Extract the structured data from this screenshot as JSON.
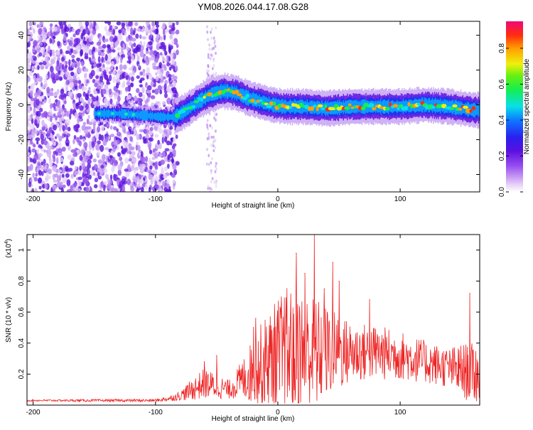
{
  "figure": {
    "title": "YM08.2026.044.17.08.G28"
  },
  "chart_data": [
    {
      "type": "heatmap",
      "title": "YM08.2026.044.17.08.G28",
      "xlabel": "Height of straight line (km)",
      "ylabel": "Frequency (Hz)",
      "xlim": [
        -205,
        165
      ],
      "ylim": [
        -50,
        48
      ],
      "x_ticks": [
        -200,
        -100,
        0,
        100
      ],
      "x_tick_labels": [
        "-200",
        "-100",
        "0",
        "100"
      ],
      "y_ticks": [
        -40,
        -20,
        0,
        20,
        40
      ],
      "y_tick_labels": [
        "-40",
        "-20",
        "0",
        "20",
        "40"
      ],
      "colorbar": {
        "label": "Normalized spectral amplitude",
        "range": [
          0,
          0.95
        ],
        "ticks": [
          0,
          0.2,
          0.4,
          0.6,
          0.8
        ],
        "tick_labels": [
          "0.0",
          "0.2",
          "0.4",
          "0.6",
          "0.8"
        ]
      },
      "ridge": {
        "x": [
          -150,
          -130,
          -110,
          -95,
          -85,
          -75,
          -65,
          -55,
          -45,
          -35,
          -25,
          -15,
          -5,
          5,
          20,
          40,
          60,
          80,
          100,
          120,
          140,
          160
        ],
        "frequency": [
          -5,
          -5,
          -6,
          -7,
          -7,
          -3,
          2,
          6,
          8,
          7,
          4,
          2,
          0,
          -1,
          -1,
          -2,
          -1,
          -1,
          -1,
          0,
          -1,
          -3
        ]
      },
      "noise_region_x": [
        -205,
        -85
      ]
    },
    {
      "type": "line",
      "xlabel": "Height of straight line (km)",
      "ylabel": "SNR (10 * v/v)",
      "y_multiplier_label": "(x10",
      "y_multiplier_exponent": "4",
      "y_multiplier_close": ")",
      "xlim": [
        -205,
        165
      ],
      "ylim": [
        0,
        1.1
      ],
      "x_ticks": [
        -200,
        -100,
        0,
        100
      ],
      "x_tick_labels": [
        "-200",
        "-100",
        "0",
        "100"
      ],
      "y_ticks": [
        0.2,
        0.4,
        0.6,
        0.8,
        1
      ],
      "y_tick_labels": [
        "0.2",
        "0.4",
        "0.6",
        "0.8",
        "1"
      ],
      "series": [
        {
          "name": "SNR",
          "color": "#ee2222",
          "envelope": {
            "x": [
              -205,
              -150,
              -100,
              -90,
              -80,
              -70,
              -60,
              -50,
              -40,
              -30,
              -20,
              -10,
              0,
              10,
              20,
              30,
              40,
              60,
              80,
              100,
              120,
              140,
              150,
              165
            ],
            "base": [
              0.03,
              0.03,
              0.03,
              0.04,
              0.06,
              0.1,
              0.14,
              0.12,
              0.1,
              0.16,
              0.22,
              0.28,
              0.3,
              0.34,
              0.34,
              0.33,
              0.34,
              0.34,
              0.34,
              0.32,
              0.28,
              0.24,
              0.22,
              0.2
            ],
            "amp": [
              0.005,
              0.008,
              0.01,
              0.015,
              0.03,
              0.07,
              0.1,
              0.08,
              0.06,
              0.12,
              0.22,
              0.3,
              0.4,
              0.45,
              0.4,
              0.38,
              0.3,
              0.2,
              0.18,
              0.16,
              0.14,
              0.13,
              0.18,
              0.2
            ]
          },
          "peaks": [
            {
              "x": -60,
              "y": 0.28
            },
            {
              "x": -50,
              "y": 0.32
            },
            {
              "x": -20,
              "y": 0.5
            },
            {
              "x": -18,
              "y": 0.56
            },
            {
              "x": 15,
              "y": 0.98
            },
            {
              "x": 22,
              "y": 0.85
            },
            {
              "x": 30,
              "y": 1.1
            },
            {
              "x": 38,
              "y": 0.75
            },
            {
              "x": 45,
              "y": 0.92
            },
            {
              "x": 50,
              "y": 0.8
            },
            {
              "x": 75,
              "y": 0.68
            },
            {
              "x": 157,
              "y": 0.72
            }
          ]
        }
      ]
    }
  ]
}
